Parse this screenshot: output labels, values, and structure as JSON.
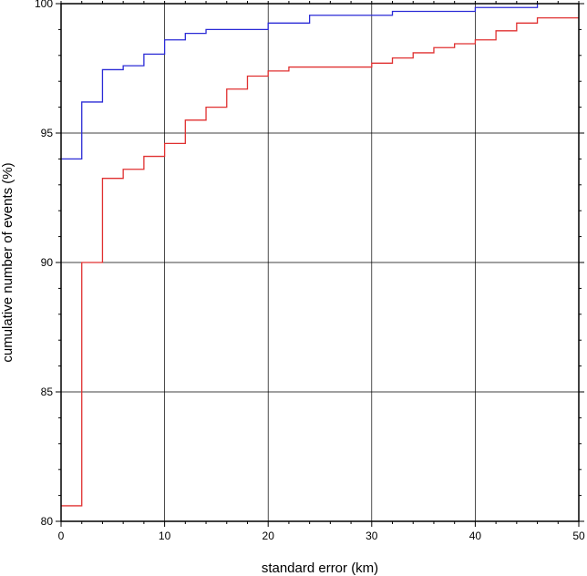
{
  "chart_data": {
    "type": "line",
    "title": "",
    "xlabel": "standard error (km)",
    "ylabel": "cumulative number of events (%)",
    "xlim": [
      0,
      50
    ],
    "ylim": [
      80,
      100
    ],
    "x_major_ticks": [
      0,
      10,
      20,
      30,
      40,
      50
    ],
    "y_major_ticks": [
      80,
      85,
      90,
      95,
      100
    ],
    "x_tick_labels": [
      "0",
      "10",
      "20",
      "30",
      "40",
      "50"
    ],
    "y_tick_labels": [
      "80",
      "85",
      "90",
      "95",
      "100"
    ],
    "grid": true,
    "step": true,
    "series": [
      {
        "color": "#2b2bd6",
        "points": [
          [
            0,
            94.0
          ],
          [
            2,
            96.2
          ],
          [
            4,
            97.45
          ],
          [
            6,
            97.6
          ],
          [
            8,
            98.05
          ],
          [
            10,
            98.6
          ],
          [
            12,
            98.85
          ],
          [
            14,
            99.0
          ],
          [
            20,
            99.25
          ],
          [
            24,
            99.55
          ],
          [
            32,
            99.7
          ],
          [
            40,
            99.85
          ],
          [
            46,
            100.0
          ]
        ],
        "end_x": 46
      },
      {
        "color": "#e03030",
        "points": [
          [
            0,
            80.6
          ],
          [
            2,
            90.0
          ],
          [
            4,
            93.25
          ],
          [
            6,
            93.6
          ],
          [
            8,
            94.1
          ],
          [
            10,
            94.6
          ],
          [
            12,
            95.5
          ],
          [
            14,
            96.0
          ],
          [
            16,
            96.7
          ],
          [
            18,
            97.2
          ],
          [
            20,
            97.4
          ],
          [
            22,
            97.55
          ],
          [
            30,
            97.7
          ],
          [
            32,
            97.9
          ],
          [
            34,
            98.1
          ],
          [
            36,
            98.3
          ],
          [
            38,
            98.45
          ],
          [
            40,
            98.6
          ],
          [
            42,
            98.95
          ],
          [
            44,
            99.25
          ],
          [
            46,
            99.45
          ]
        ],
        "end_x": 50
      }
    ]
  }
}
